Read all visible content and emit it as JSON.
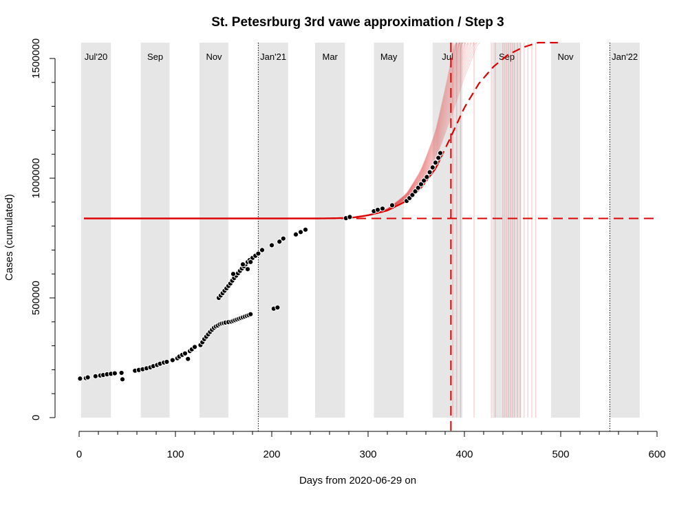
{
  "chart_data": {
    "type": "scatter",
    "title": "St. Petesrburg 3rd vawe approximation / Step 3",
    "xlabel": "Days from 2020-06-29 on",
    "ylabel": "Cases (cumulated)",
    "xlim": [
      0,
      600
    ],
    "ylim": [
      0,
      1500000
    ],
    "x_ticks": [
      0,
      100,
      200,
      300,
      400,
      500,
      600
    ],
    "x_tick_labels": [
      "0",
      "100",
      "200",
      "300",
      "400",
      "500",
      "600"
    ],
    "y_ticks": [
      0,
      500000,
      1000000,
      1500000
    ],
    "y_tick_labels": [
      "0",
      "500000",
      "1000000",
      "1500000"
    ],
    "month_bands": [
      {
        "label": "Jul'20",
        "start": 2,
        "end": 33
      },
      {
        "label": "Sep",
        "start": 64,
        "end": 94
      },
      {
        "label": "Nov",
        "start": 125,
        "end": 155
      },
      {
        "label": "Jan'21",
        "start": 186,
        "end": 217
      },
      {
        "label": "Mar",
        "start": 245,
        "end": 276
      },
      {
        "label": "May",
        "start": 306,
        "end": 337
      },
      {
        "label": "Jul",
        "start": 367,
        "end": 398
      },
      {
        "label": "Sep",
        "start": 429,
        "end": 459
      },
      {
        "label": "Nov",
        "start": 490,
        "end": 520
      },
      {
        "label": "Jan'22",
        "start": 551,
        "end": 582
      }
    ],
    "year_lines": [
      186,
      551
    ],
    "series": [
      {
        "type": "scatter",
        "color": "#000000",
        "x": [
          1,
          7,
          9,
          17,
          22,
          25,
          29,
          33,
          37,
          44,
          45,
          58,
          62,
          66,
          70,
          74,
          77,
          81,
          84,
          88,
          91,
          97,
          102,
          104,
          107,
          110,
          113,
          115,
          117,
          120,
          126,
          128,
          130,
          132,
          134,
          136,
          138,
          140,
          142,
          144,
          146,
          148,
          150,
          152,
          155,
          158,
          160,
          162,
          164,
          166,
          168,
          170,
          172,
          174,
          176,
          178,
          145,
          147,
          149,
          151,
          153,
          155,
          157,
          159,
          161,
          163,
          165,
          167,
          169,
          171,
          173,
          175,
          177,
          180,
          183,
          186,
          190,
          200,
          208,
          212,
          225,
          230,
          235,
          277,
          281,
          306,
          310,
          315,
          325,
          340,
          343,
          346,
          349,
          352,
          355,
          358,
          361,
          364,
          367,
          370,
          373,
          375,
          160,
          170,
          175,
          178,
          202,
          206
        ],
        "y": [
          163000,
          165000,
          168000,
          173000,
          176000,
          178000,
          181000,
          183000,
          185000,
          187000,
          160000,
          196000,
          199000,
          202000,
          206000,
          210000,
          215000,
          220000,
          225000,
          230000,
          233000,
          240000,
          248000,
          255000,
          262000,
          268000,
          245000,
          278000,
          285000,
          295000,
          303000,
          315000,
          328000,
          338000,
          348000,
          358000,
          367000,
          375000,
          381000,
          385000,
          390000,
          393000,
          395000,
          397000,
          399000,
          401000,
          404000,
          407000,
          410000,
          413000,
          416000,
          419000,
          422000,
          425000,
          428000,
          432000,
          500000,
          510000,
          520000,
          530000,
          540000,
          550000,
          560000,
          572000,
          583000,
          593000,
          603000,
          613000,
          623000,
          632000,
          641000,
          650000,
          658000,
          667000,
          676000,
          685000,
          700000,
          720000,
          735000,
          748000,
          765000,
          775000,
          785000,
          833000,
          838000,
          862000,
          868000,
          873000,
          887000,
          905000,
          917000,
          930000,
          945000,
          960000,
          975000,
          990000,
          1005000,
          1025000,
          1045000,
          1065000,
          1085000,
          1105000,
          600000,
          640000,
          620000,
          650000,
          455000,
          460000
        ]
      },
      {
        "type": "line",
        "color": "#dd0000",
        "name": "",
        "x": [
          5,
          50,
          100,
          150,
          200,
          250,
          270,
          285,
          300,
          320,
          340,
          355,
          370,
          385,
          400,
          415,
          430,
          445,
          460,
          475,
          490,
          497
        ],
        "y": [
          832000,
          832000,
          832000,
          832000,
          832000,
          832000,
          833000,
          836000,
          845000,
          865000,
          905000,
          960000,
          1040000,
          1165000,
          1295000,
          1395000,
          1465000,
          1515000,
          1545000,
          1565000,
          1578000,
          1582000
        ]
      }
    ],
    "reference_lines": {
      "color": "#dd0000",
      "horizontal_y": 832000,
      "vertical_x": 386
    },
    "grid": false
  }
}
